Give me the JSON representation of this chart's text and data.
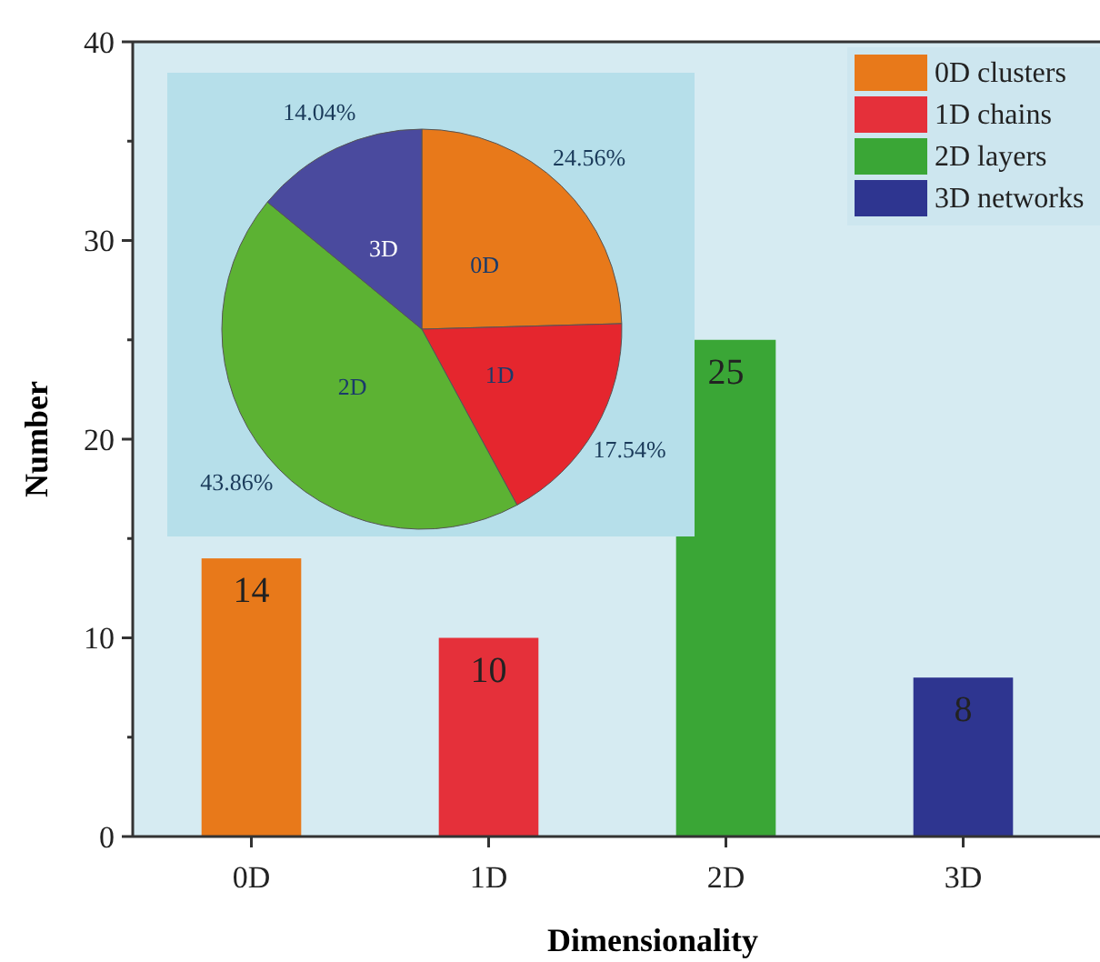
{
  "chart_data": [
    {
      "type": "bar",
      "xlabel": "Dimensionality",
      "ylabel": "Number",
      "categories": [
        "0D",
        "1D",
        "2D",
        "3D"
      ],
      "series": [
        {
          "name": "0D clusters",
          "color": "#e8791a",
          "values": [
            14,
            null,
            null,
            null
          ]
        },
        {
          "name": "1D chains",
          "color": "#e5303a",
          "values": [
            null,
            10,
            null,
            null
          ]
        },
        {
          "name": "2D layers",
          "color": "#3aa636",
          "values": [
            null,
            null,
            25,
            null
          ]
        },
        {
          "name": "3D networks",
          "color": "#2e3590",
          "values": [
            null,
            null,
            null,
            8
          ]
        }
      ],
      "ylim": [
        0,
        40
      ],
      "yticks": [
        0,
        {
          "value": 5,
          "label": null
        },
        10,
        {
          "value": 15,
          "label": null
        },
        20,
        {
          "value": 25,
          "label": null
        },
        30,
        {
          "value": 35,
          "label": null
        },
        40
      ],
      "data_labels": true,
      "legend": "top right"
    },
    {
      "type": "pie",
      "categories": [
        "0D",
        "1D",
        "2D",
        "3D"
      ],
      "values": [
        24.56,
        17.54,
        43.86,
        14.04
      ],
      "colors": [
        "#e8791a",
        "#e5262e",
        "#5cb233",
        "#4a4a9e"
      ],
      "value_labels": [
        "24.56%",
        "17.54%",
        "43.86%",
        "14.04%"
      ]
    }
  ]
}
